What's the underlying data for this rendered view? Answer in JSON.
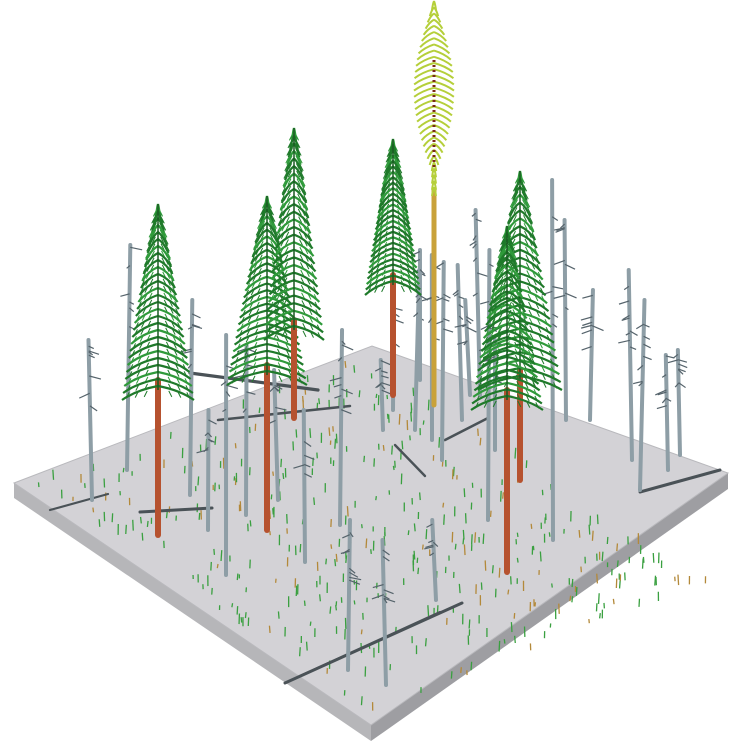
{
  "scene": {
    "description_text": "",
    "colors": {
      "background": "#ffffff",
      "plot_top": "#d3d2d6",
      "plot_side_left": "#b6b6b9",
      "plot_side_right": "#9e9ea2",
      "plot_edge": "#8a8a8e",
      "live_trunk": "#b6522f",
      "live_foliage": "#1f7a2a",
      "live_foliage_light": "#2f9a3a",
      "snag": "#8e9ea6",
      "snag_dark": "#55636b",
      "log": "#4a5257",
      "young_trunk": "#c9a23a",
      "young_foliage": "#b5cf3a",
      "young_foliage_dark": "#7a2a18",
      "seedling": "#3aa040",
      "seedling_dead": "#b3893a"
    },
    "counts": {
      "live_trees": 6,
      "young_tree": 1,
      "snags": 26,
      "logs": 9
    }
  }
}
